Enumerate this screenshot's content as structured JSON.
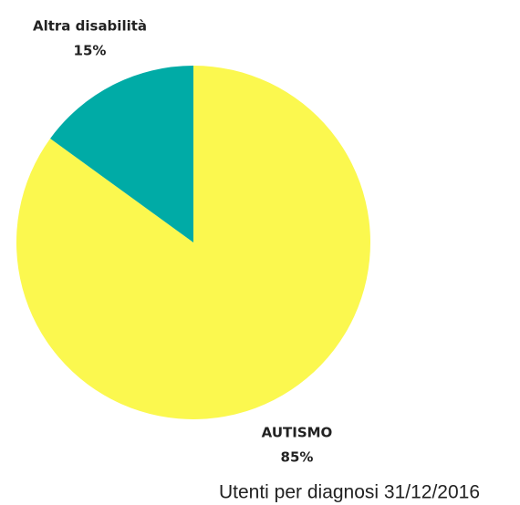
{
  "chart_data": {
    "type": "pie",
    "title": "Utenti per diagnosi 31/12/2016",
    "categories": [
      "AUTISMO",
      "Altra disabilità"
    ],
    "values": [
      85,
      15
    ],
    "value_labels": [
      "85%",
      "15%"
    ],
    "colors": [
      "#fbf84f",
      "#00aba6"
    ]
  }
}
